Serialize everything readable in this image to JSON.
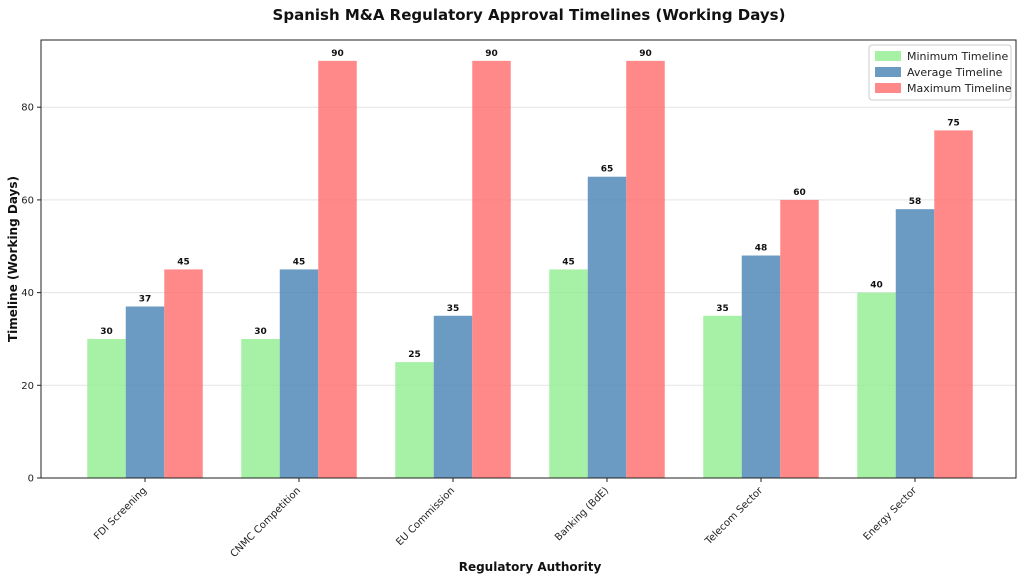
{
  "chart_data": {
    "type": "bar",
    "title": "Spanish M&A Regulatory Approval Timelines (Working Days)",
    "xlabel": "Regulatory Authority",
    "ylabel": "Timeline (Working Days)",
    "categories": [
      "FDI Screening",
      "CNMC Competition",
      "EU Commission",
      "Banking (BdE)",
      "Telecom Sector",
      "Energy Sector"
    ],
    "series": [
      {
        "name": "Minimum Timeline",
        "values": [
          30,
          30,
          25,
          45,
          35,
          40
        ],
        "color": "#90ee90"
      },
      {
        "name": "Average Timeline",
        "values": [
          37,
          45,
          35,
          65,
          48,
          58
        ],
        "color": "#4682b4"
      },
      {
        "name": "Maximum Timeline",
        "values": [
          45,
          90,
          90,
          90,
          60,
          75
        ],
        "color": "#ff6b6b"
      }
    ],
    "ylim": [
      0,
      94.5
    ],
    "yticks": [
      0,
      20,
      40,
      60,
      80
    ],
    "grid": true,
    "legend": "top-right"
  }
}
